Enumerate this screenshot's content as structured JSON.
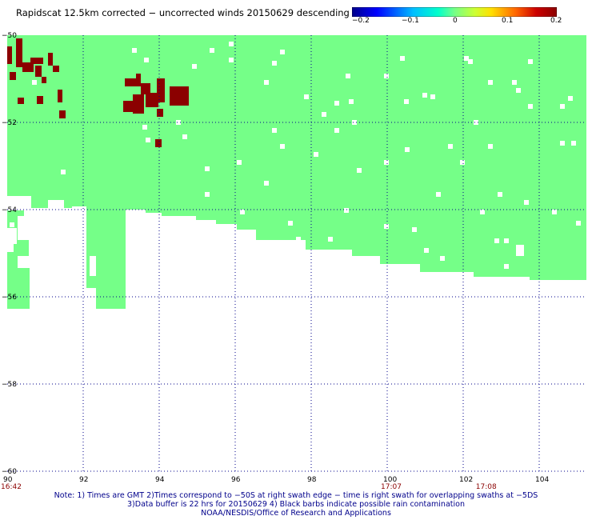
{
  "title": "Rapidscat 12.5km corrected − uncorrected winds 20150629 descending",
  "colorbar": {
    "labels": [
      "−0.2",
      "−0.1",
      "0",
      "0.1",
      "0.2"
    ],
    "min": -0.2,
    "max": 0.2
  },
  "map": {
    "lon_range": [
      90,
      105
    ],
    "lat_range": [
      -60,
      -50
    ],
    "lon_ticks": [
      "90",
      "92",
      "94",
      "96",
      "98",
      "100",
      "102",
      "104"
    ],
    "lat_ticks": [
      "−50",
      "−52",
      "−54",
      "−56",
      "−58",
      "−60"
    ],
    "time_labels": [
      {
        "lon": 90,
        "text": "16:42"
      },
      {
        "lon": 100,
        "text": "17:07"
      },
      {
        "lon": 102.5,
        "text": "17:08"
      }
    ],
    "zero_color": "#75ff88",
    "pos_color": "#8b0000",
    "grid_color": "#00008b",
    "data_color_note": "swath filled with near-zero differences; small clusters at +0.2 in the north-west"
  },
  "notes": {
    "line1": "Note: 1) Times are GMT 2)Times correspond to −50S at right swath edge − time is right swath for overlapping swaths at −5DS",
    "line2": "3)Data buffer is 22 hrs for 20150629 4) Black barbs indicate possible rain contamination",
    "line3": "NOAA/NESDIS/Office of Research and Applications"
  }
}
